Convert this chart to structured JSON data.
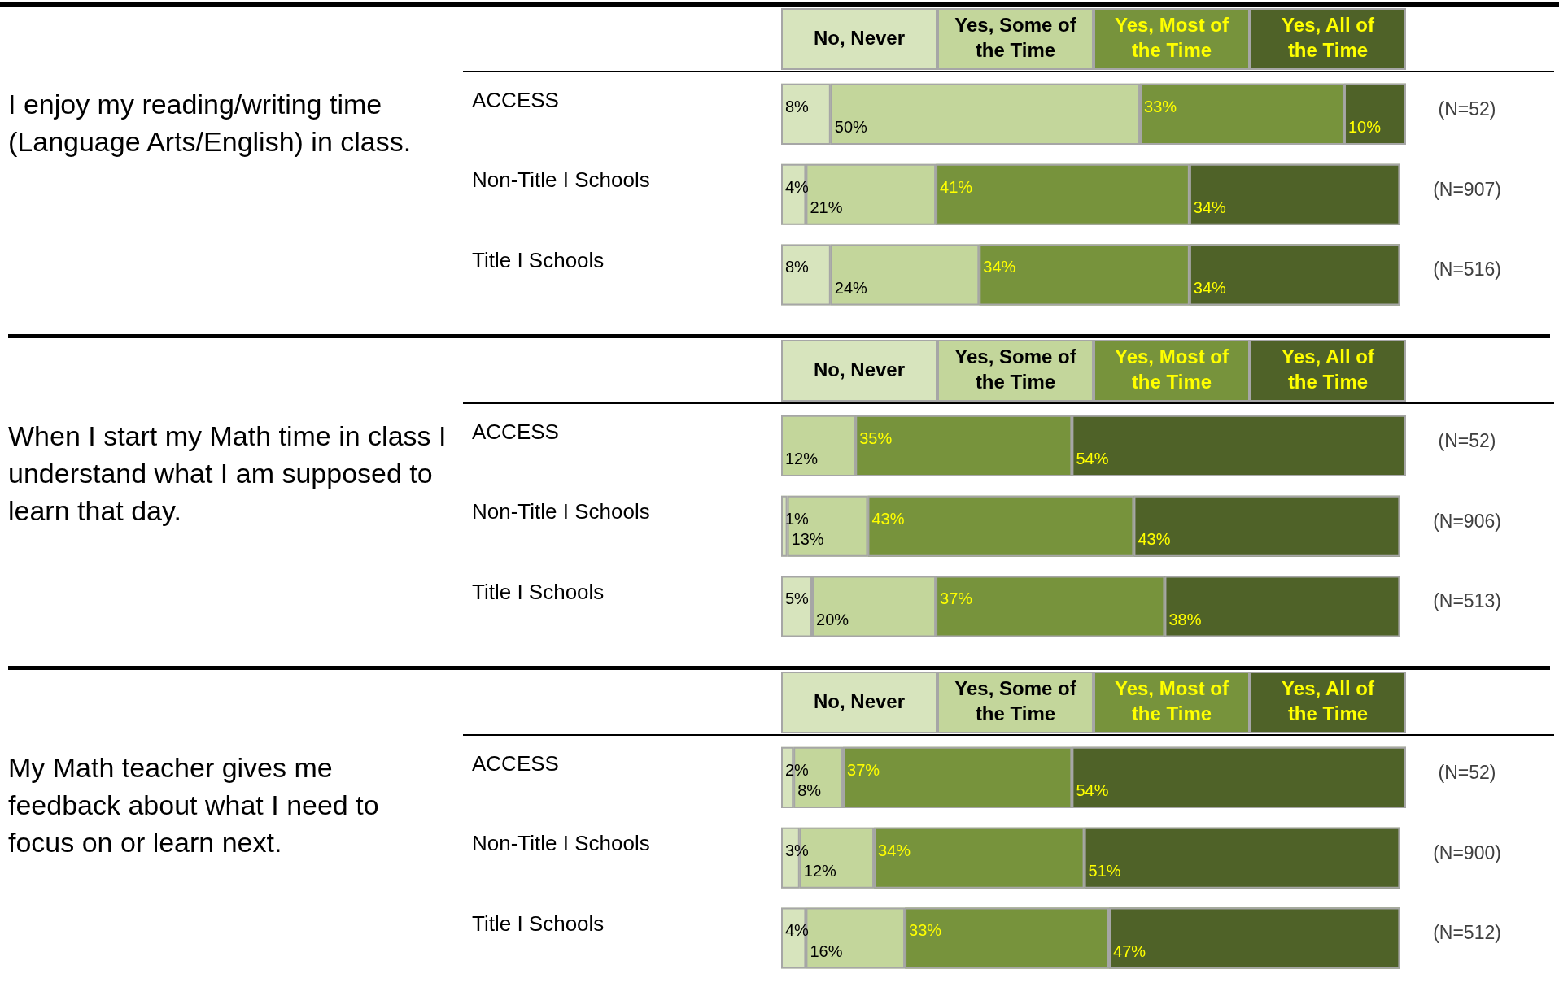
{
  "chart_data": [
    {
      "type": "bar",
      "title": "I enjoy my reading/writing time (Language Arts/English) in class.",
      "categories": [
        "ACCESS",
        "Non-Title I Schools",
        "Title I Schools"
      ],
      "orientation": "horizontal",
      "stacked": true,
      "legend": "top",
      "tick_labels": "y",
      "series": [
        {
          "name": "No, Never",
          "color": "#d7e4bd",
          "values": [
            8,
            4,
            8
          ],
          "value_labels": [
            "8%",
            "4%",
            "8%"
          ]
        },
        {
          "name": "Yes, Some of the Time",
          "color": "#c3d69b",
          "values": [
            50,
            21,
            24
          ],
          "value_labels": [
            "50%",
            "21%",
            "24%"
          ]
        },
        {
          "name": "Yes, Most of the Time",
          "color": "#77933c",
          "values": [
            33,
            41,
            34
          ],
          "value_labels": [
            "33%",
            "41%",
            "34%"
          ]
        },
        {
          "name": "Yes, All of the Time",
          "color": "#4f6228",
          "values": [
            10,
            34,
            34
          ],
          "value_labels": [
            "10%",
            "34%",
            "34%"
          ]
        }
      ],
      "annotations": [
        "(N=52)",
        "(N=907)",
        "(N=516)"
      ]
    },
    {
      "type": "bar",
      "title": "When I start my Math time in class I understand what I am supposed to learn that day.",
      "categories": [
        "ACCESS",
        "Non-Title I Schools",
        "Title I Schools"
      ],
      "orientation": "horizontal",
      "stacked": true,
      "legend": "top",
      "tick_labels": "y",
      "series": [
        {
          "name": "No, Never",
          "color": "#d7e4bd",
          "values": [
            0,
            1,
            5
          ],
          "value_labels": [
            null,
            "1%",
            "5%"
          ]
        },
        {
          "name": "Yes, Some of the Time",
          "color": "#c3d69b",
          "values": [
            12,
            13,
            20
          ],
          "value_labels": [
            "12%",
            "13%",
            "20%"
          ]
        },
        {
          "name": "Yes, Most of the Time",
          "color": "#77933c",
          "values": [
            35,
            43,
            37
          ],
          "value_labels": [
            "35%",
            "43%",
            "37%"
          ]
        },
        {
          "name": "Yes, All of the Time",
          "color": "#4f6228",
          "values": [
            54,
            43,
            38
          ],
          "value_labels": [
            "54%",
            "43%",
            "38%"
          ]
        }
      ],
      "annotations": [
        "(N=52)",
        "(N=906)",
        "(N=513)"
      ]
    },
    {
      "type": "bar",
      "title": "My Math teacher gives me feedback about what I need to focus on or learn next.",
      "categories": [
        "ACCESS",
        "Non-Title I Schools",
        "Title I Schools"
      ],
      "orientation": "horizontal",
      "stacked": true,
      "legend": "top",
      "tick_labels": "y",
      "series": [
        {
          "name": "No, Never",
          "color": "#d7e4bd",
          "values": [
            2,
            3,
            4
          ],
          "value_labels": [
            "2%",
            "3%",
            "4%"
          ]
        },
        {
          "name": "Yes, Some of the Time",
          "color": "#c3d69b",
          "values": [
            8,
            12,
            16
          ],
          "value_labels": [
            "8%",
            "12%",
            "16%"
          ]
        },
        {
          "name": "Yes, Most of the Time",
          "color": "#77933c",
          "values": [
            37,
            34,
            33
          ],
          "value_labels": [
            "37%",
            "34%",
            "33%"
          ]
        },
        {
          "name": "Yes, All of the Time",
          "color": "#4f6228",
          "values": [
            54,
            51,
            47
          ],
          "value_labels": [
            "54%",
            "51%",
            "47%"
          ]
        }
      ],
      "annotations": [
        "(N=52)",
        "(N=900)",
        "(N=512)"
      ]
    }
  ]
}
